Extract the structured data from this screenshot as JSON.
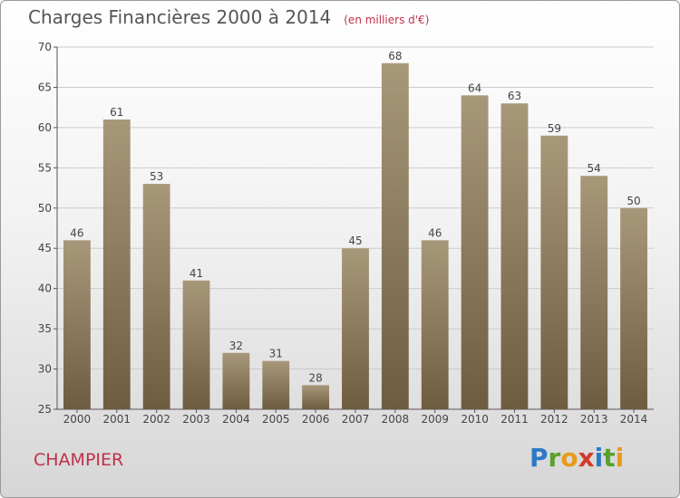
{
  "title": "Charges Financières 2000 à 2014",
  "unit_note": "(en milliers d'€)",
  "commune": "CHAMPIER",
  "logo_text": "Proxiti",
  "colors": {
    "bar_top": "#a8987a",
    "bar_bottom": "#6e5c40",
    "grid": "#cccccc",
    "accent": "#c0304a"
  },
  "chart_data": {
    "type": "bar",
    "title": "Charges Financières 2000 à 2014",
    "subtitle": "(en milliers d'€)",
    "categories": [
      "2000",
      "2001",
      "2002",
      "2003",
      "2004",
      "2005",
      "2006",
      "2007",
      "2008",
      "2009",
      "2010",
      "2011",
      "2012",
      "2013",
      "2014"
    ],
    "values": [
      46,
      61,
      53,
      41,
      32,
      31,
      28,
      45,
      68,
      46,
      64,
      63,
      59,
      54,
      50
    ],
    "ylim": [
      25,
      70
    ],
    "yticks": [
      25,
      30,
      35,
      40,
      45,
      50,
      55,
      60,
      65,
      70
    ],
    "grid": true,
    "data_labels": true
  }
}
